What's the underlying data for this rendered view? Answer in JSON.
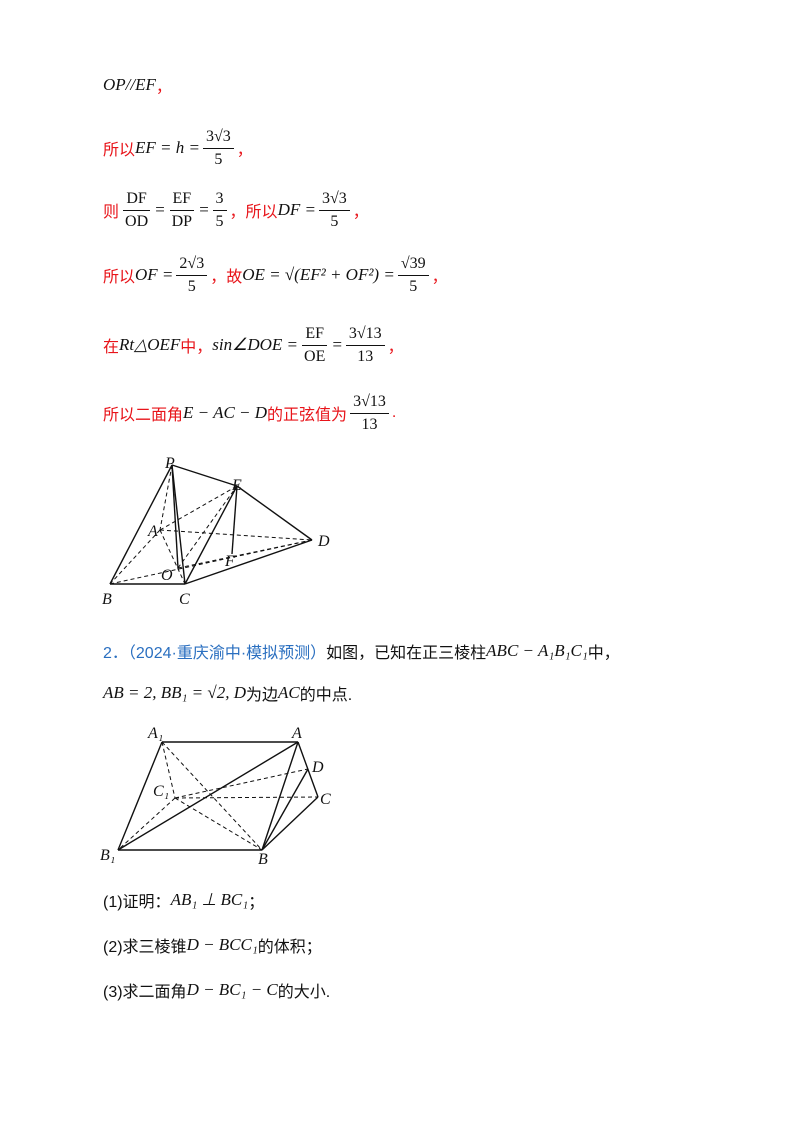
{
  "lines": [
    {
      "segments": [
        {
          "text": "OP//EF",
          "style": "math"
        },
        {
          "text": "，",
          "style": "red"
        }
      ]
    },
    {
      "segments": [
        {
          "text": "所以",
          "style": "red"
        },
        {
          "text": "EF = h = ",
          "style": "math"
        },
        {
          "num": "3√3",
          "den": "5"
        },
        {
          "text": "，",
          "style": "red"
        }
      ]
    },
    {
      "segments": [
        {
          "text": "则",
          "style": "red"
        },
        {
          "num": "DF",
          "den": "OD"
        },
        {
          "text": " = ",
          "style": "math"
        },
        {
          "num": "EF",
          "den": "DP"
        },
        {
          "text": " = ",
          "style": "math"
        },
        {
          "num": "3",
          "den": "5"
        },
        {
          "text": "，所以",
          "style": "red"
        },
        {
          "text": "DF = ",
          "style": "math"
        },
        {
          "num": "3√3",
          "den": "5"
        },
        {
          "text": "，",
          "style": "red"
        }
      ]
    },
    {
      "segments": [
        {
          "text": "所以",
          "style": "red"
        },
        {
          "text": "OF = ",
          "style": "math"
        },
        {
          "num": "2√3",
          "den": "5"
        },
        {
          "text": "，故",
          "style": "red"
        },
        {
          "text": "OE = √(EF² + OF²) = ",
          "style": "math"
        },
        {
          "num": "√39",
          "den": "5"
        },
        {
          "text": "，",
          "style": "red"
        }
      ]
    },
    {
      "segments": [
        {
          "text": "在",
          "style": "red"
        },
        {
          "text": "Rt△OEF",
          "style": "math"
        },
        {
          "text": "中，",
          "style": "red"
        },
        {
          "text": "sin∠DOE = ",
          "style": "math"
        },
        {
          "num": "EF",
          "den": "OE"
        },
        {
          "text": " = ",
          "style": "math"
        },
        {
          "num": "3√13",
          "den": "13"
        },
        {
          "text": "，",
          "style": "red"
        }
      ]
    },
    {
      "segments": [
        {
          "text": "所以二面角",
          "style": "red"
        },
        {
          "text": "E − AC − D",
          "style": "math"
        },
        {
          "text": "的正弦值为",
          "style": "red"
        },
        {
          "num": "3√13",
          "den": "13"
        },
        {
          "text": ".",
          "style": "red"
        }
      ]
    },
    {
      "segments": [
        {
          "text": "2．（2024·重庆渝中·模拟预测）",
          "style": "blue"
        },
        {
          "text": "如图，已知在正三棱柱",
          "style": "black"
        },
        {
          "text": "ABC − A₁B₁C₁",
          "style": "math"
        },
        {
          "text": "中，",
          "style": "black"
        }
      ]
    },
    {
      "segments": [
        {
          "text": "AB = 2, BB₁ = √2, D",
          "style": "math"
        },
        {
          "text": "为边",
          "style": "black"
        },
        {
          "text": "AC",
          "style": "math"
        },
        {
          "text": "的中点.",
          "style": "black"
        }
      ]
    },
    {
      "segments": [
        {
          "text": "(1)证明：",
          "style": "black"
        },
        {
          "text": "AB₁ ⊥ BC₁",
          "style": "math"
        },
        {
          "text": "；",
          "style": "black"
        }
      ]
    },
    {
      "segments": [
        {
          "text": "(2)求三棱锥",
          "style": "black"
        },
        {
          "text": "D − BCC₁",
          "style": "math"
        },
        {
          "text": "的体积；",
          "style": "black"
        }
      ]
    },
    {
      "segments": [
        {
          "text": "(3)求二面角",
          "style": "black"
        },
        {
          "text": "D − BC₁ − C",
          "style": "math"
        },
        {
          "text": "的大小.",
          "style": "black"
        }
      ]
    }
  ],
  "figures": [
    {
      "labels": [
        "P",
        "E",
        "A",
        "D",
        "O",
        "F",
        "B",
        "C"
      ]
    },
    {
      "labels": [
        "A₁",
        "A",
        "D",
        "C₁",
        "C",
        "B₁",
        "B"
      ]
    }
  ]
}
